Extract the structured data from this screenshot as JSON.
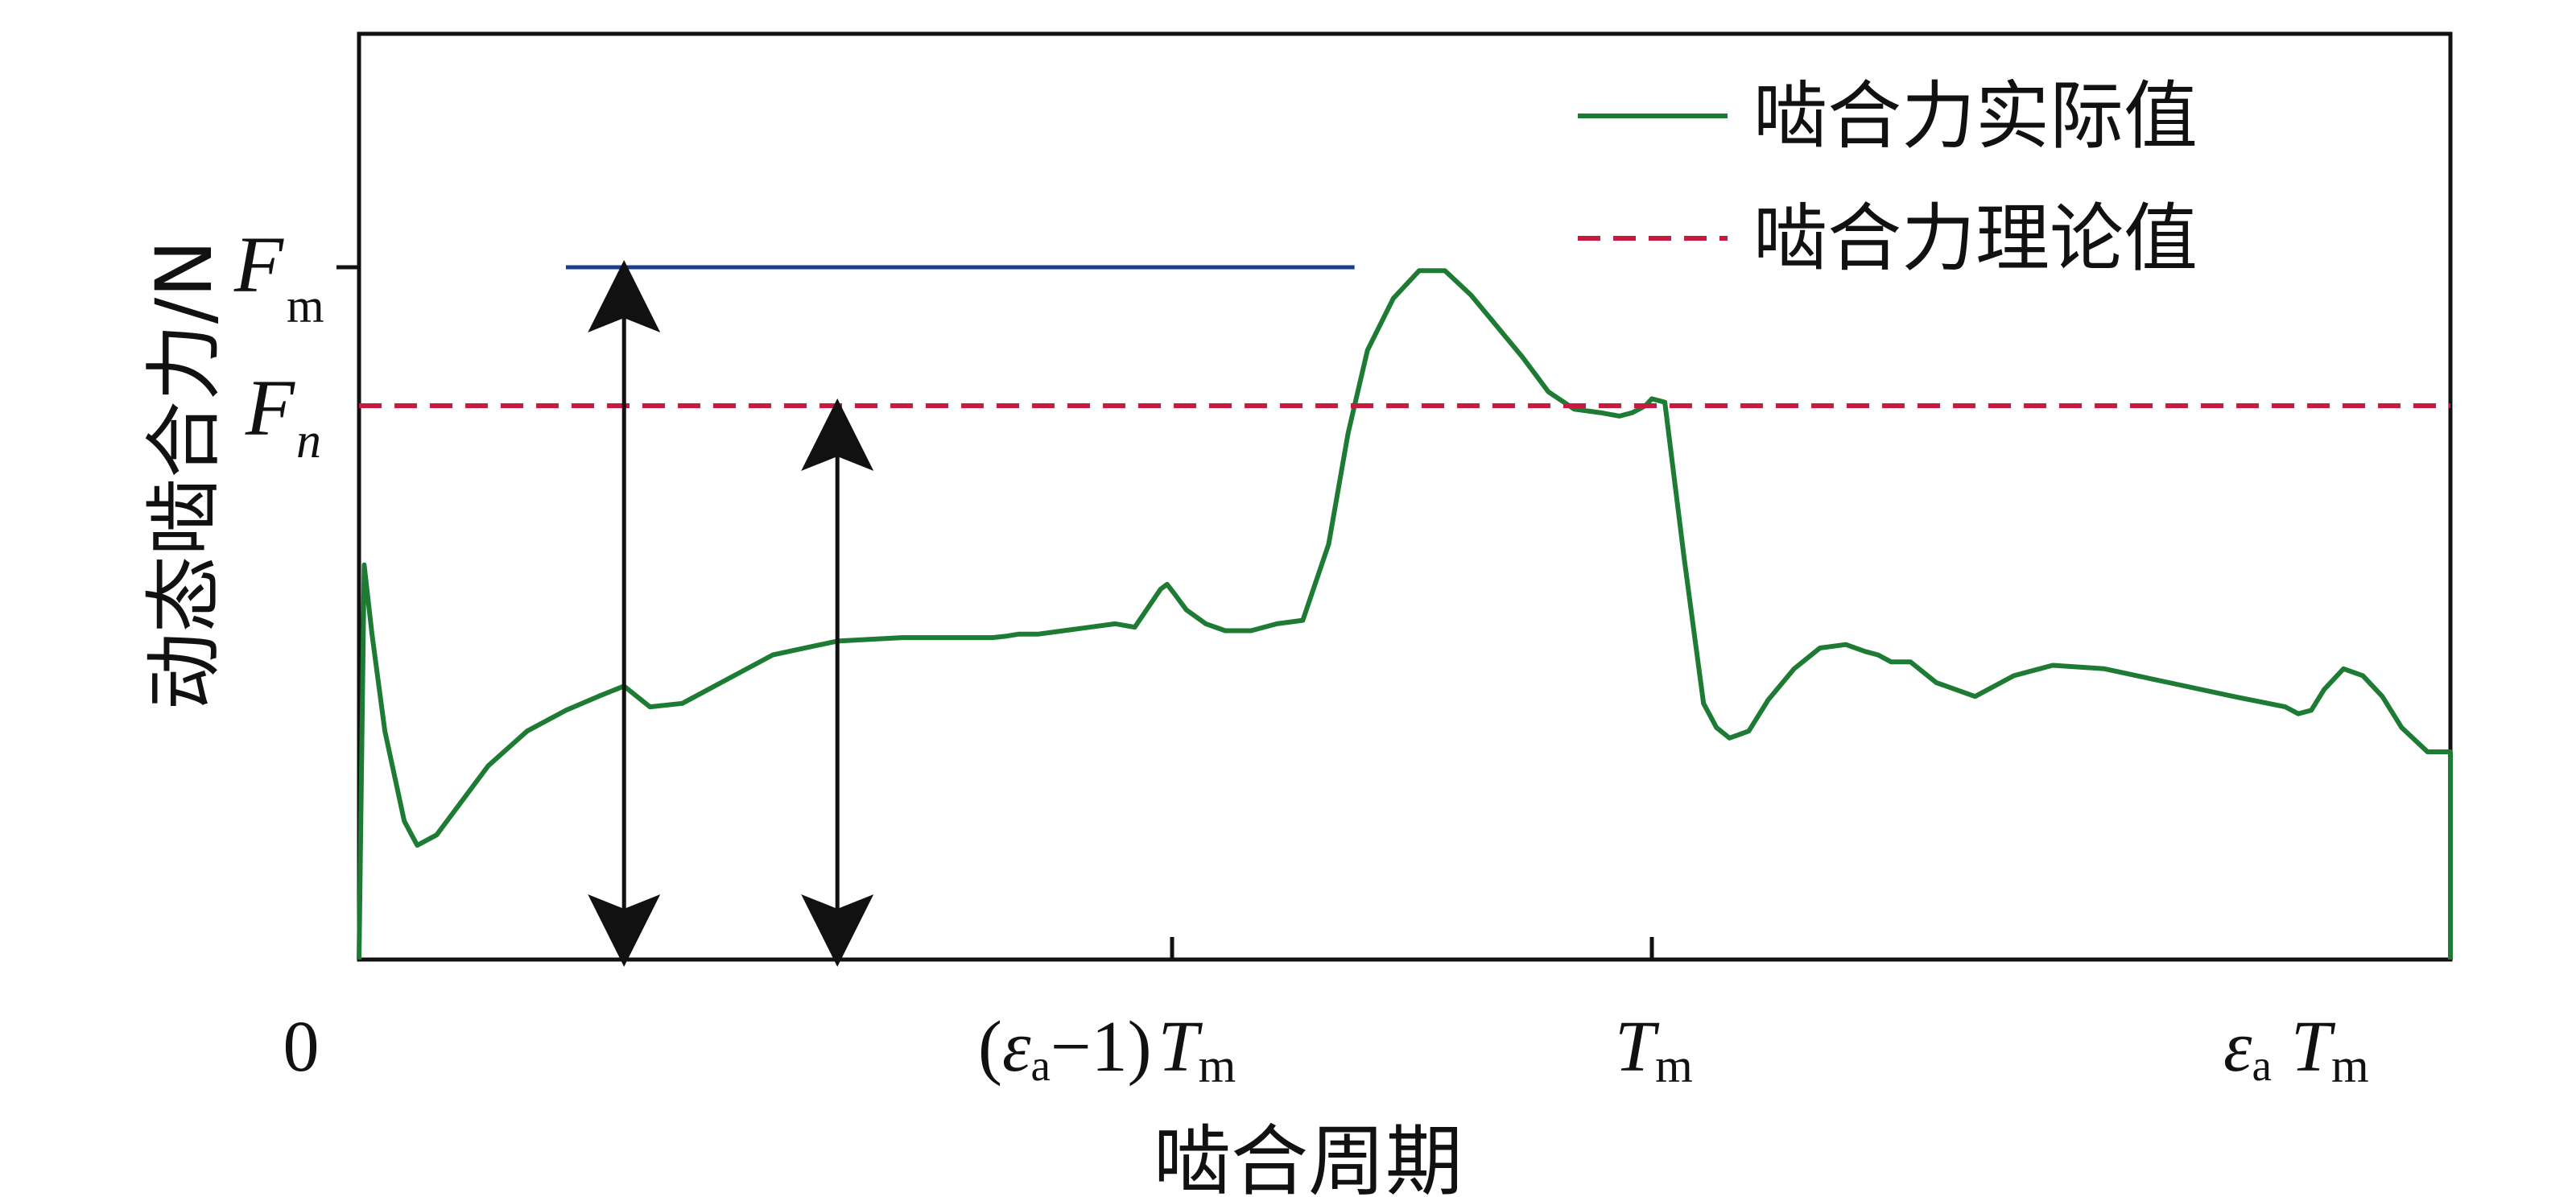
{
  "chart_data": {
    "type": "line",
    "title": "",
    "xlabel": "啮合周期",
    "ylabel": "动态啮合力/N",
    "xlim": [
      0,
      1.63
    ],
    "ylim": [
      0,
      1.37
    ],
    "grid": false,
    "legend_position": "top-right",
    "x_ticks": [
      {
        "label": "0",
        "value": 0
      },
      {
        "label_parts": [
          "(",
          "ε",
          "a",
          "−1)",
          "T",
          "m"
        ],
        "value": 0.63
      },
      {
        "label_parts": [
          "T",
          "m"
        ],
        "value": 1.0
      },
      {
        "label_parts": [
          "ε",
          "a",
          "T",
          "m"
        ],
        "value": 1.63
      }
    ],
    "y_ticks": [
      {
        "label_parts": [
          "F",
          "m"
        ],
        "value": 1.0
      },
      {
        "label_parts": [
          "F",
          "n"
        ],
        "value": 0.8
      }
    ],
    "series": [
      {
        "name": "啮合力实际值",
        "color": "#1e7b34",
        "style": "solid",
        "x": [
          0,
          0.004,
          0.01,
          0.02,
          0.035,
          0.045,
          0.06,
          0.08,
          0.1,
          0.13,
          0.16,
          0.185,
          0.205,
          0.225,
          0.25,
          0.28,
          0.32,
          0.37,
          0.42,
          0.46,
          0.49,
          0.5,
          0.51,
          0.525,
          0.545,
          0.565,
          0.585,
          0.6,
          0.62,
          0.625,
          0.63,
          0.64,
          0.655,
          0.67,
          0.69,
          0.71,
          0.73,
          0.75,
          0.765,
          0.78,
          0.8,
          0.82,
          0.84,
          0.86,
          0.88,
          0.9,
          0.92,
          0.94,
          0.96,
          0.975,
          0.985,
          0.99,
          0.995,
          1.0,
          1.01,
          1.025,
          1.04,
          1.05,
          1.06,
          1.075,
          1.09,
          1.11,
          1.13,
          1.15,
          1.165,
          1.175,
          1.185,
          1.2,
          1.22,
          1.25,
          1.28,
          1.31,
          1.35,
          1.4,
          1.45,
          1.49,
          1.5,
          1.51,
          1.52,
          1.535,
          1.55,
          1.565,
          1.58,
          1.6,
          1.62,
          1.627,
          1.628,
          1.63
        ],
        "values": [
          0.0,
          0.57,
          0.47,
          0.33,
          0.2,
          0.165,
          0.18,
          0.23,
          0.28,
          0.33,
          0.36,
          0.38,
          0.395,
          0.365,
          0.37,
          0.4,
          0.44,
          0.46,
          0.465,
          0.465,
          0.465,
          0.467,
          0.47,
          0.47,
          0.475,
          0.48,
          0.485,
          0.48,
          0.535,
          0.542,
          0.53,
          0.505,
          0.485,
          0.475,
          0.475,
          0.485,
          0.49,
          0.6,
          0.76,
          0.88,
          0.955,
          0.995,
          0.995,
          0.96,
          0.915,
          0.87,
          0.82,
          0.795,
          0.79,
          0.785,
          0.79,
          0.795,
          0.8,
          0.81,
          0.805,
          0.58,
          0.37,
          0.335,
          0.32,
          0.33,
          0.375,
          0.42,
          0.45,
          0.455,
          0.445,
          0.44,
          0.43,
          0.43,
          0.4,
          0.38,
          0.41,
          0.425,
          0.42,
          0.4,
          0.38,
          0.365,
          0.355,
          0.36,
          0.39,
          0.42,
          0.41,
          0.38,
          0.335,
          0.3,
          0.3,
          0.3,
          0.3,
          0.0
        ]
      },
      {
        "name": "啮合力理论值",
        "color": "#c8193f",
        "style": "dashed",
        "x": [
          0,
          1.63
        ],
        "values": [
          0.8,
          0.8
        ]
      }
    ],
    "annotations": [
      {
        "type": "hline",
        "color": "#1a3c8e",
        "x": [
          0.16,
          0.77
        ],
        "y": 1.0
      },
      {
        "type": "double-arrow",
        "color": "#111111",
        "x": 0.205,
        "y": [
          0,
          1.0
        ]
      },
      {
        "type": "double-arrow",
        "color": "#111111",
        "x": 0.37,
        "y": [
          0,
          0.8
        ]
      }
    ]
  }
}
